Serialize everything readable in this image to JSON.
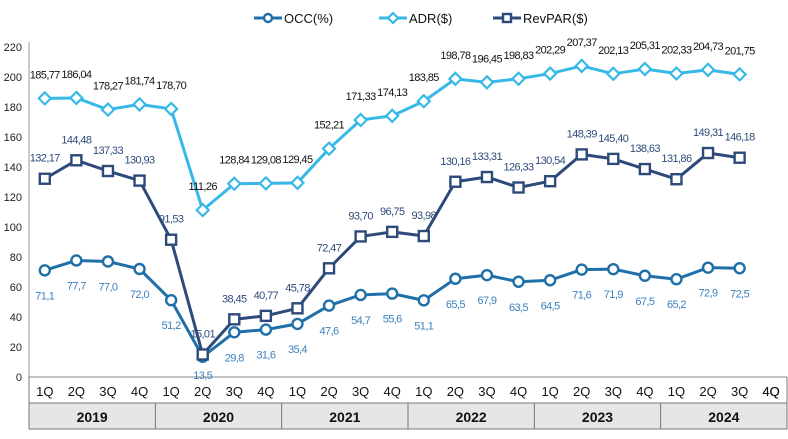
{
  "chart_data": {
    "type": "line",
    "ylim": [
      0,
      220
    ],
    "yticks": [
      0,
      20,
      40,
      60,
      80,
      100,
      120,
      140,
      160,
      180,
      200,
      220
    ],
    "grid": false,
    "legend_position": "top-center",
    "quarters": [
      "1Q",
      "2Q",
      "3Q",
      "4Q",
      "1Q",
      "2Q",
      "3Q",
      "4Q",
      "1Q",
      "2Q",
      "3Q",
      "4Q",
      "1Q",
      "2Q",
      "3Q",
      "4Q",
      "1Q",
      "2Q",
      "3Q",
      "4Q",
      "1Q",
      "2Q",
      "3Q",
      "4Q"
    ],
    "years": [
      "2019",
      "2020",
      "2021",
      "2022",
      "2023",
      "2024"
    ],
    "series": [
      {
        "name": "OCC(%)",
        "color": "#1f6fa8",
        "marker": "circle",
        "values": [
          71.1,
          77.7,
          77.0,
          72.0,
          51.2,
          13.5,
          29.8,
          31.6,
          35.4,
          47.6,
          54.7,
          55.6,
          51.1,
          65.5,
          67.9,
          63.5,
          64.5,
          71.6,
          71.9,
          67.5,
          65.2,
          72.9,
          72.5,
          null
        ],
        "labels": [
          "71,1",
          "77,7",
          "77,0",
          "72,0",
          "51,2",
          "13,5",
          "29,8",
          "31,6",
          "35,4",
          "47,6",
          "54,7",
          "55,6",
          "51,1",
          "65,5",
          "67,9",
          "63,5",
          "64,5",
          "71,6",
          "71,9",
          "67,5",
          "65,2",
          "72,9",
          "72,5",
          ""
        ]
      },
      {
        "name": "ADR($)",
        "color": "#38b8e6",
        "marker": "diamond",
        "values": [
          185.77,
          186.04,
          178.27,
          181.74,
          178.7,
          111.26,
          128.84,
          129.08,
          129.45,
          152.21,
          171.33,
          174.13,
          183.85,
          198.78,
          196.45,
          198.83,
          202.29,
          207.37,
          202.13,
          205.31,
          202.33,
          204.73,
          201.75,
          null
        ],
        "labels": [
          "185,77",
          "186,04",
          "178,27",
          "181,74",
          "178,70",
          "111,26",
          "128,84",
          "129,08",
          "129,45",
          "152,21",
          "171,33",
          "174,13",
          "183,85",
          "198,78",
          "196,45",
          "198,83",
          "202,29",
          "207,37",
          "202,13",
          "205,31",
          "202,33",
          "204,73",
          "201,75",
          ""
        ]
      },
      {
        "name": "RevPAR($)",
        "color": "#2e4a7a",
        "marker": "square",
        "values": [
          132.17,
          144.48,
          137.33,
          130.93,
          91.53,
          15.01,
          38.45,
          40.77,
          45.78,
          72.47,
          93.7,
          96.75,
          93.98,
          130.16,
          133.31,
          126.33,
          130.54,
          148.39,
          145.4,
          138.63,
          131.86,
          149.31,
          146.18,
          null
        ],
        "labels": [
          "132,17",
          "144,48",
          "137,33",
          "130,93",
          "91,53",
          "15,01",
          "38,45",
          "40,77",
          "45,78",
          "72,47",
          "93,70",
          "96,75",
          "93,98",
          "130,16",
          "133,31",
          "126,33",
          "130,54",
          "148,39",
          "145,40",
          "138,63",
          "131,86",
          "149,31",
          "146,18",
          ""
        ]
      }
    ]
  }
}
